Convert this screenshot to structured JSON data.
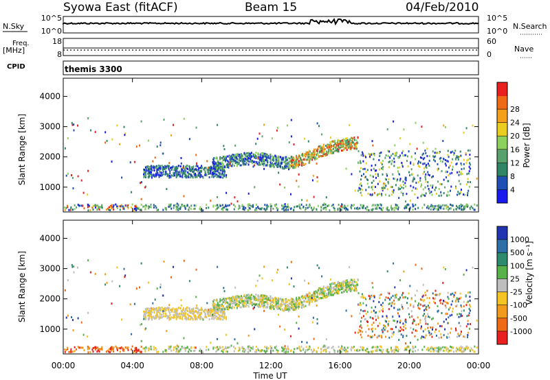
{
  "header": {
    "station": "Syowa East (fitACF)",
    "beam": "Beam 15",
    "date": "04/Feb/2010"
  },
  "nsky_panel": {
    "left_label": "N.Sky",
    "right_label": "N.Search",
    "left_ticks": [
      "10^5",
      "10^0"
    ],
    "right_ticks": [
      "10^5",
      "10^0"
    ],
    "right_line_style": "dotted"
  },
  "freq_panel": {
    "left_label_1": "Freq.",
    "left_label_2": "[MHz]",
    "right_label": "Nave",
    "left_ticks": [
      "18",
      "8"
    ],
    "right_ticks": [
      "60",
      "0"
    ],
    "right_line_style": "dotted"
  },
  "cpid_panel": {
    "label": "CPID",
    "text": "themis 3300"
  },
  "chart_data": [
    {
      "type": "heatmap",
      "name": "power",
      "ylabel": "Slant Range [km]",
      "yticks": [
        1000,
        2000,
        3000,
        4000
      ],
      "ylim": [
        180,
        4600
      ],
      "xlim": [
        0,
        24
      ],
      "colorbar": {
        "title": "Power [dB]",
        "ticks": [
          "4",
          "8",
          "12",
          "16",
          "20",
          "24",
          "28"
        ],
        "colors": [
          "#1a1aee",
          "#1f4fb4",
          "#2f8566",
          "#5aa06c",
          "#8ed05e",
          "#e9ce20",
          "#f5a01a",
          "#ef6a14",
          "#e82020"
        ]
      }
    },
    {
      "type": "heatmap",
      "name": "velocity",
      "ylabel": "Slant Range [km]",
      "yticks": [
        1000,
        2000,
        3000,
        4000
      ],
      "ylim": [
        180,
        4600
      ],
      "xlim": [
        0,
        24
      ],
      "xlabel": "Time UT",
      "xticks": [
        "00:00",
        "04:00",
        "08:00",
        "12:00",
        "16:00",
        "20:00",
        "00:00"
      ],
      "colorbar": {
        "title": "Velocity [m s⁻¹]",
        "ticks": [
          "1000",
          "500",
          "100",
          "25",
          "-25",
          "-100",
          "-500",
          "-1000"
        ],
        "colors": [
          "#2235b0",
          "#2f6fa8",
          "#2e8a6c",
          "#58b24a",
          "#bebebe",
          "#f3c424",
          "#f29a1c",
          "#ef6a14",
          "#e82020"
        ]
      }
    }
  ]
}
